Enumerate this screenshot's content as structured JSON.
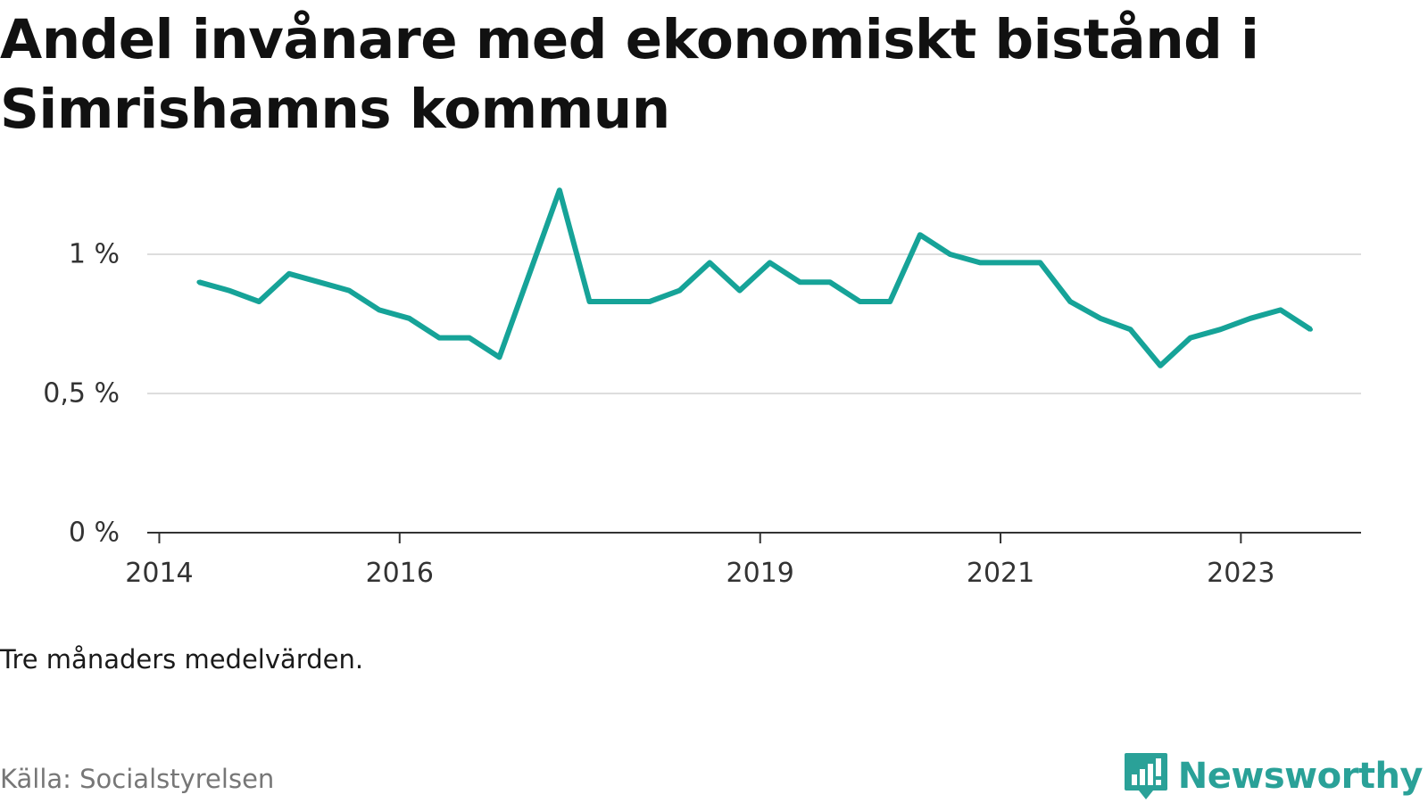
{
  "title": "Andel invånare med ekonomiskt bistånd i Simrishamns kommun",
  "note": "Tre månaders medelvärden.",
  "source": "Källa: Socialstyrelsen",
  "brand": {
    "name": "Newsworthy",
    "logo_icon": "newsworthy-bar-chart-icon",
    "color": "#2aa198"
  },
  "chart_data": {
    "type": "line",
    "title": "Andel invånare med ekonomiskt bistånd i Simrishamns kommun",
    "xlabel": "",
    "ylabel": "",
    "y_unit": "%",
    "ylim": [
      0,
      1.25
    ],
    "y_ticks": [
      {
        "value": 0,
        "label": "0 %"
      },
      {
        "value": 0.5,
        "label": "0,5 %"
      },
      {
        "value": 1,
        "label": "1 %"
      }
    ],
    "x_ticks": [
      {
        "value": 2014,
        "label": "2014"
      },
      {
        "value": 2016,
        "label": "2016"
      },
      {
        "value": 2019,
        "label": "2019"
      },
      {
        "value": 2021,
        "label": "2021"
      },
      {
        "value": 2023,
        "label": "2023"
      }
    ],
    "xlim": [
      2013.9,
      2024.0
    ],
    "grid": true,
    "series": [
      {
        "color": "#16a398",
        "x": [
          2014.33,
          2014.58,
          2014.83,
          2015.08,
          2015.33,
          2015.58,
          2015.83,
          2016.08,
          2016.33,
          2016.58,
          2016.83,
          2017.08,
          2017.33,
          2017.58,
          2017.83,
          2018.08,
          2018.33,
          2018.58,
          2018.83,
          2019.08,
          2019.33,
          2019.58,
          2019.83,
          2020.08,
          2020.33,
          2020.58,
          2020.83,
          2021.08,
          2021.33,
          2021.58,
          2021.83,
          2022.08,
          2022.33,
          2022.58,
          2022.83,
          2023.08,
          2023.33,
          2023.58
        ],
        "values": [
          0.9,
          0.87,
          0.83,
          0.93,
          0.9,
          0.87,
          0.8,
          0.77,
          0.7,
          0.7,
          0.63,
          0.93,
          1.23,
          0.83,
          0.83,
          0.83,
          0.87,
          0.97,
          0.87,
          0.97,
          0.9,
          0.9,
          0.83,
          0.83,
          1.07,
          1.0,
          0.97,
          0.97,
          0.97,
          0.83,
          0.77,
          0.73,
          0.6,
          0.7,
          0.73,
          0.77,
          0.8,
          0.73
        ]
      }
    ]
  }
}
